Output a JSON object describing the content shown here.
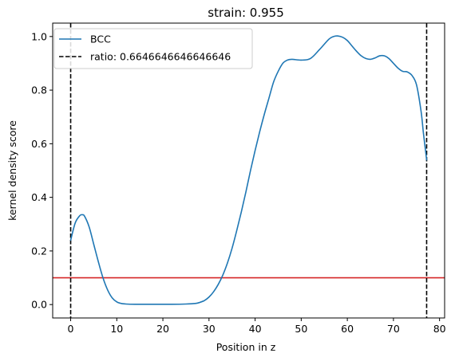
{
  "chart_data": {
    "type": "line",
    "title": "strain: 0.955",
    "xlabel": "Position in z",
    "ylabel": "kernel density score",
    "xlim": [
      -3.9,
      81.1
    ],
    "ylim": [
      -0.05,
      1.05
    ],
    "xticks": [
      0,
      10,
      20,
      30,
      40,
      50,
      60,
      70,
      80
    ],
    "yticks": [
      0.0,
      0.2,
      0.4,
      0.6,
      0.8,
      1.0
    ],
    "xtick_labels": [
      "0",
      "10",
      "20",
      "30",
      "40",
      "50",
      "60",
      "70",
      "80"
    ],
    "ytick_labels": [
      "0.0",
      "0.2",
      "0.4",
      "0.6",
      "0.8",
      "1.0"
    ],
    "grid": false,
    "legend_position": "top-left",
    "series": [
      {
        "name": "BCC",
        "color": "#1f77b4",
        "style": "solid",
        "x": [
          0,
          1,
          2,
          2.5,
          3,
          4,
          5,
          6,
          7,
          8,
          9,
          10,
          11,
          12,
          14,
          18,
          22,
          25,
          27,
          28,
          29,
          30,
          31,
          32,
          33,
          34,
          35,
          36,
          37,
          38,
          39,
          40,
          41,
          42,
          43,
          44,
          45,
          46,
          47,
          48,
          50,
          52,
          54,
          56,
          57,
          58,
          59,
          60,
          61,
          62,
          63,
          64,
          65,
          66,
          67,
          68,
          69,
          70,
          71,
          72,
          73,
          74,
          75,
          76,
          76.5,
          77.2
        ],
        "y": [
          0.24,
          0.305,
          0.332,
          0.335,
          0.33,
          0.29,
          0.225,
          0.16,
          0.1,
          0.055,
          0.025,
          0.01,
          0.004,
          0.002,
          0.001,
          0.001,
          0.001,
          0.002,
          0.004,
          0.008,
          0.015,
          0.028,
          0.048,
          0.075,
          0.11,
          0.155,
          0.21,
          0.275,
          0.345,
          0.42,
          0.5,
          0.575,
          0.645,
          0.71,
          0.77,
          0.83,
          0.87,
          0.9,
          0.912,
          0.915,
          0.912,
          0.918,
          0.952,
          0.99,
          1.0,
          1.002,
          0.997,
          0.985,
          0.965,
          0.945,
          0.928,
          0.918,
          0.915,
          0.92,
          0.928,
          0.928,
          0.918,
          0.9,
          0.882,
          0.87,
          0.868,
          0.855,
          0.82,
          0.72,
          0.64,
          0.54
        ]
      }
    ],
    "vlines": [
      {
        "label": "ratio: 0.6646646646646646",
        "x": 0,
        "color": "#000000",
        "style": "dashed"
      },
      {
        "label": "",
        "x": 77.2,
        "color": "#000000",
        "style": "dashed"
      }
    ],
    "hlines": [
      {
        "y": 0.1,
        "color": "#d62728",
        "style": "solid"
      }
    ],
    "legend": [
      {
        "label": "BCC",
        "color": "#1f77b4",
        "style": "solid"
      },
      {
        "label": "ratio: 0.6646646646646646",
        "color": "#000000",
        "style": "dashed"
      }
    ]
  }
}
